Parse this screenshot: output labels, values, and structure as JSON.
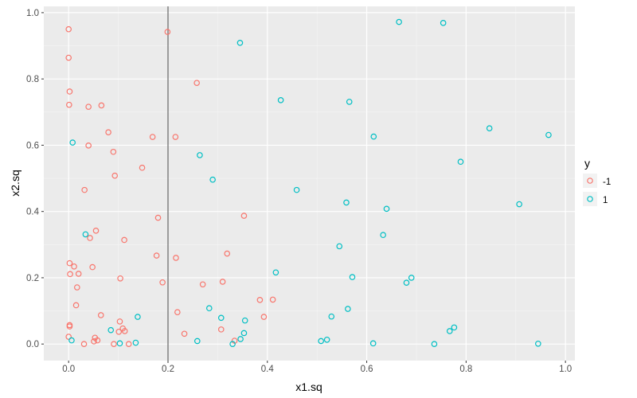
{
  "chart_data": {
    "type": "scatter",
    "xlabel": "x1.sq",
    "ylabel": "x2.sq",
    "xlim": [
      -0.05,
      1.019
    ],
    "ylim": [
      -0.05,
      1.019
    ],
    "xticks": [
      "0.0",
      "0.2",
      "0.4",
      "0.6",
      "0.8",
      "1.0"
    ],
    "yticks": [
      "0.0",
      "0.2",
      "0.4",
      "0.6",
      "0.8",
      "1.0"
    ],
    "grid": true,
    "background": "#EBEBEB",
    "vline": {
      "x": 0.2,
      "color": "#808080"
    },
    "legend": {
      "title": "y",
      "placement": "right"
    },
    "series": [
      {
        "name": "-1",
        "color": "#F8766D",
        "points": [
          [
            0.0,
            0.95
          ],
          [
            0.199,
            0.942
          ],
          [
            0.0,
            0.864
          ],
          [
            0.258,
            0.788
          ],
          [
            0.002,
            0.762
          ],
          [
            0.001,
            0.722
          ],
          [
            0.04,
            0.716
          ],
          [
            0.066,
            0.72
          ],
          [
            0.08,
            0.639
          ],
          [
            0.169,
            0.625
          ],
          [
            0.215,
            0.625
          ],
          [
            0.04,
            0.599
          ],
          [
            0.09,
            0.58
          ],
          [
            0.148,
            0.532
          ],
          [
            0.093,
            0.508
          ],
          [
            0.032,
            0.465
          ],
          [
            0.18,
            0.381
          ],
          [
            0.353,
            0.387
          ],
          [
            0.055,
            0.342
          ],
          [
            0.043,
            0.32
          ],
          [
            0.112,
            0.314
          ],
          [
            0.177,
            0.267
          ],
          [
            0.216,
            0.26
          ],
          [
            0.319,
            0.273
          ],
          [
            0.002,
            0.244
          ],
          [
            0.011,
            0.234
          ],
          [
            0.048,
            0.232
          ],
          [
            0.003,
            0.211
          ],
          [
            0.02,
            0.212
          ],
          [
            0.104,
            0.198
          ],
          [
            0.189,
            0.186
          ],
          [
            0.27,
            0.18
          ],
          [
            0.31,
            0.188
          ],
          [
            0.385,
            0.133
          ],
          [
            0.411,
            0.134
          ],
          [
            0.393,
            0.082
          ],
          [
            0.017,
            0.171
          ],
          [
            0.015,
            0.117
          ],
          [
            0.065,
            0.087
          ],
          [
            0.219,
            0.096
          ],
          [
            0.002,
            0.057
          ],
          [
            0.002,
            0.053
          ],
          [
            0.103,
            0.068
          ],
          [
            0.109,
            0.047
          ],
          [
            0.101,
            0.037
          ],
          [
            0.113,
            0.039
          ],
          [
            0.233,
            0.031
          ],
          [
            0.307,
            0.044
          ],
          [
            0.0,
            0.022
          ],
          [
            0.053,
            0.019
          ],
          [
            0.051,
            0.008
          ],
          [
            0.058,
            0.011
          ],
          [
            0.031,
            0.0
          ],
          [
            0.091,
            0.0
          ],
          [
            0.121,
            0.0
          ],
          [
            0.334,
            0.01
          ]
        ]
      },
      {
        "name": "1",
        "color": "#00BFC4",
        "points": [
          [
            0.345,
            0.909
          ],
          [
            0.008,
            0.608
          ],
          [
            0.264,
            0.57
          ],
          [
            0.29,
            0.496
          ],
          [
            0.034,
            0.331
          ],
          [
            0.006,
            0.011
          ],
          [
            0.085,
            0.042
          ],
          [
            0.103,
            0.002
          ],
          [
            0.135,
            0.004
          ],
          [
            0.139,
            0.082
          ],
          [
            0.259,
            0.009
          ],
          [
            0.283,
            0.108
          ],
          [
            0.307,
            0.079
          ],
          [
            0.355,
            0.071
          ],
          [
            0.353,
            0.033
          ],
          [
            0.346,
            0.015
          ],
          [
            0.33,
            0.0
          ],
          [
            0.665,
            0.972
          ],
          [
            0.754,
            0.969
          ],
          [
            0.427,
            0.736
          ],
          [
            0.565,
            0.731
          ],
          [
            0.614,
            0.626
          ],
          [
            0.789,
            0.55
          ],
          [
            0.459,
            0.465
          ],
          [
            0.559,
            0.427
          ],
          [
            0.64,
            0.408
          ],
          [
            0.633,
            0.329
          ],
          [
            0.545,
            0.295
          ],
          [
            0.417,
            0.216
          ],
          [
            0.571,
            0.202
          ],
          [
            0.69,
            0.2
          ],
          [
            0.68,
            0.185
          ],
          [
            0.562,
            0.106
          ],
          [
            0.529,
            0.083
          ],
          [
            0.508,
            0.009
          ],
          [
            0.52,
            0.013
          ],
          [
            0.613,
            0.002
          ],
          [
            0.736,
            0.0
          ],
          [
            0.767,
            0.039
          ],
          [
            0.776,
            0.05
          ],
          [
            0.847,
            0.651
          ],
          [
            0.966,
            0.631
          ],
          [
            0.907,
            0.422
          ],
          [
            0.945,
            0.001
          ]
        ]
      }
    ]
  }
}
